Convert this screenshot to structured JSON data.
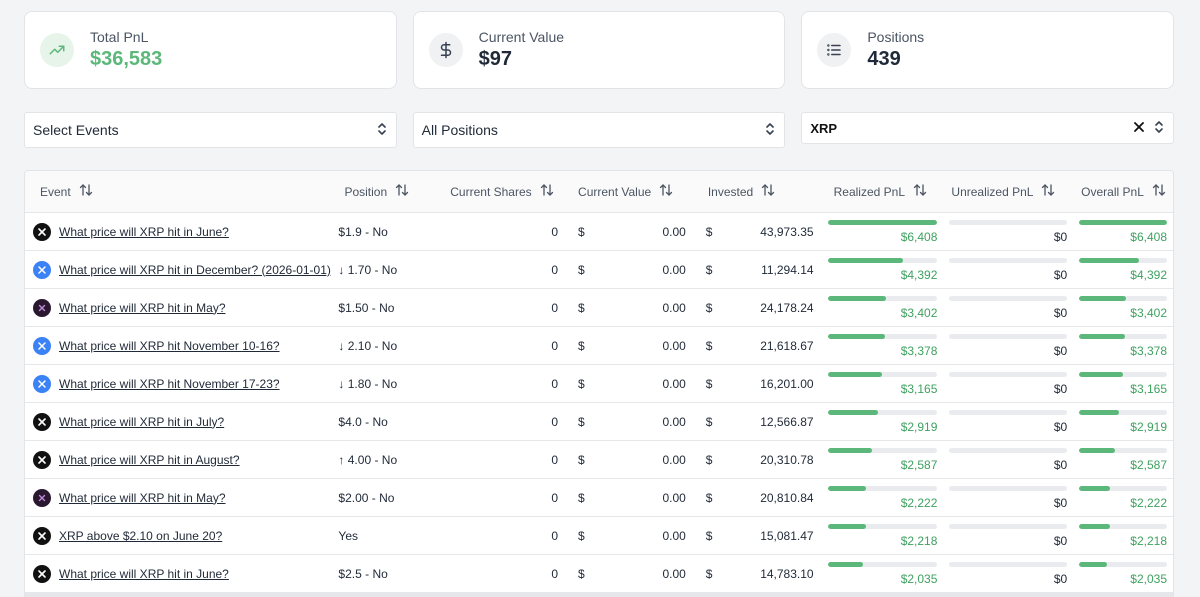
{
  "summary": [
    {
      "label": "Total PnL",
      "value": "$36,583",
      "icon": "trending-up-icon",
      "accent": "#5cb87a"
    },
    {
      "label": "Current Value",
      "value": "$97",
      "icon": "dollar-icon"
    },
    {
      "label": "Positions",
      "value": "439",
      "icon": "list-icon"
    }
  ],
  "filters": {
    "events": "Select Events",
    "positions": "All Positions",
    "search_value": "XRP"
  },
  "table": {
    "headers": [
      "Event",
      "Position",
      "Current Shares",
      "Current Value",
      "Invested",
      "Realized PnL",
      "Unrealized PnL",
      "Overall PnL"
    ],
    "currency": "$",
    "rows": [
      {
        "icon": "x-logo-icon",
        "event": "What price will XRP hit in June?",
        "position": "$1.9 - No",
        "shares": "0",
        "value": "0.00",
        "invested": "43,973.35",
        "realized": "$6,408",
        "unrealized": "$0",
        "overall": "$6,408",
        "realized_fill": 1.0,
        "overall_fill": 1.0
      },
      {
        "icon": "xrp-blue-icon",
        "event": "What price will XRP hit in December? (2026-01-01)",
        "position": "↓ 1.70 - No",
        "shares": "0",
        "value": "0.00",
        "invested": "11,294.14",
        "realized": "$4,392",
        "unrealized": "$0",
        "overall": "$4,392",
        "realized_fill": 0.685,
        "overall_fill": 0.685
      },
      {
        "icon": "xrp-purple-icon",
        "event": "What price will XRP hit in May?",
        "position": "$1.50 - No",
        "shares": "0",
        "value": "0.00",
        "invested": "24,178.24",
        "realized": "$3,402",
        "unrealized": "$0",
        "overall": "$3,402",
        "realized_fill": 0.531,
        "overall_fill": 0.531
      },
      {
        "icon": "xrp-blue-icon",
        "event": "What price will XRP hit November 10-16?",
        "position": "↓ 2.10 - No",
        "shares": "0",
        "value": "0.00",
        "invested": "21,618.67",
        "realized": "$3,378",
        "unrealized": "$0",
        "overall": "$3,378",
        "realized_fill": 0.527,
        "overall_fill": 0.527
      },
      {
        "icon": "xrp-blue-icon",
        "event": "What price will XRP hit November 17-23?",
        "position": "↓ 1.80 - No",
        "shares": "0",
        "value": "0.00",
        "invested": "16,201.00",
        "realized": "$3,165",
        "unrealized": "$0",
        "overall": "$3,165",
        "realized_fill": 0.494,
        "overall_fill": 0.494
      },
      {
        "icon": "x-logo-icon",
        "event": "What price will XRP hit in July?",
        "position": "$4.0 - No",
        "shares": "0",
        "value": "0.00",
        "invested": "12,566.87",
        "realized": "$2,919",
        "unrealized": "$0",
        "overall": "$2,919",
        "realized_fill": 0.456,
        "overall_fill": 0.456
      },
      {
        "icon": "x-logo-icon",
        "event": "What price will XRP hit in August?",
        "position": "↑ 4.00 - No",
        "shares": "0",
        "value": "0.00",
        "invested": "20,310.78",
        "realized": "$2,587",
        "unrealized": "$0",
        "overall": "$2,587",
        "realized_fill": 0.404,
        "overall_fill": 0.404
      },
      {
        "icon": "xrp-purple-icon",
        "event": "What price will XRP hit in May?",
        "position": "$2.00 - No",
        "shares": "0",
        "value": "0.00",
        "invested": "20,810.84",
        "realized": "$2,222",
        "unrealized": "$0",
        "overall": "$2,222",
        "realized_fill": 0.347,
        "overall_fill": 0.347
      },
      {
        "icon": "x-logo-icon",
        "event": "XRP above $2.10 on June 20?",
        "position": "Yes",
        "shares": "0",
        "value": "0.00",
        "invested": "15,081.47",
        "realized": "$2,218",
        "unrealized": "$0",
        "overall": "$2,218",
        "realized_fill": 0.346,
        "overall_fill": 0.346
      },
      {
        "icon": "x-logo-icon",
        "event": "What price will XRP hit in June?",
        "position": "$2.5 - No",
        "shares": "0",
        "value": "0.00",
        "invested": "14,783.10",
        "realized": "$2,035",
        "unrealized": "$0",
        "overall": "$2,035",
        "realized_fill": 0.318,
        "overall_fill": 0.318
      }
    ]
  }
}
